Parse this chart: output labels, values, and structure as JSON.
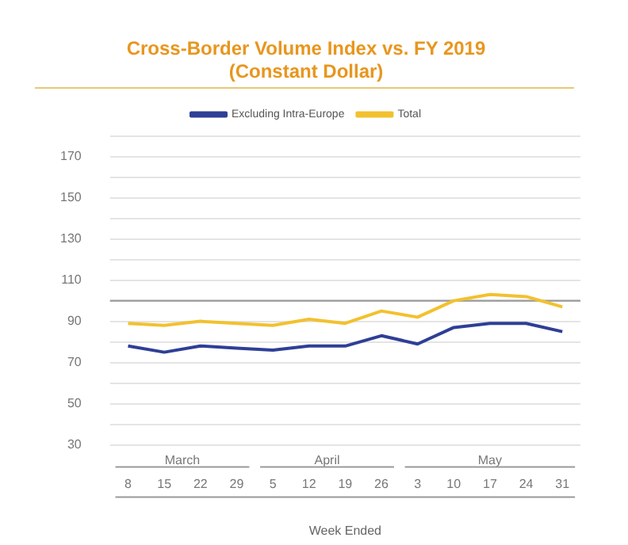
{
  "chart_data": {
    "type": "line",
    "title": "Cross-Border Volume Index vs. FY 2019",
    "subtitle": "(Constant Dollar)",
    "xlabel": "Week Ended",
    "categories": [
      "8",
      "15",
      "22",
      "29",
      "5",
      "12",
      "19",
      "26",
      "3",
      "10",
      "17",
      "24",
      "31"
    ],
    "series": [
      {
        "name": "Excluding Intra-Europe",
        "color": "#2e3f96",
        "values": [
          78,
          75,
          78,
          77,
          76,
          78,
          78,
          83,
          79,
          87,
          89,
          89,
          85
        ]
      },
      {
        "name": "Total",
        "color": "#f2c12e",
        "values": [
          89,
          88,
          90,
          89,
          88,
          91,
          89,
          95,
          92,
          100,
          103,
          102,
          97
        ]
      }
    ],
    "ylim": [
      30,
      180
    ],
    "yticks": [
      30,
      {
        "value": 40,
        "label": null
      },
      50,
      {
        "value": 60,
        "label": null
      },
      70,
      {
        "value": 80,
        "label": null
      },
      90,
      {
        "value": 100,
        "label": null
      },
      110,
      {
        "value": 120,
        "label": null
      },
      130,
      {
        "value": 140,
        "label": null
      },
      150,
      {
        "value": 160,
        "label": null
      },
      170,
      {
        "value": 180,
        "label": null
      }
    ],
    "ref_lines": [
      {
        "axis": "y",
        "value": 100,
        "color": "#9a9a9a"
      }
    ],
    "annotations": [
      "March",
      "April",
      "May"
    ],
    "grid": "y",
    "legend": "top",
    "marker": "none",
    "line_style": "solid"
  }
}
